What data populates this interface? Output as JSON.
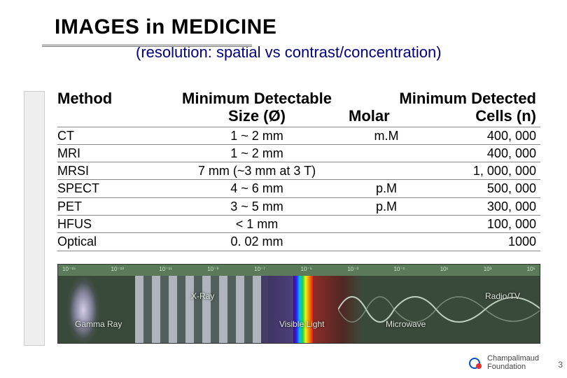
{
  "title": "IMAGES in MEDICINE",
  "subtitle": "(resolution: spatial vs contrast/concentration)",
  "headers": {
    "method": "Method",
    "size": "Minimum Detectable Size (Ø)",
    "detected": "Minimum Detected",
    "molar": "Molar",
    "cells": "Cells (n)"
  },
  "rows": [
    {
      "method": "CT",
      "size": "1 ~ 2 mm",
      "molar": "m.M",
      "cells": "400, 000"
    },
    {
      "method": "MRI",
      "size": "1 ~ 2 mm",
      "molar": "",
      "cells": "400, 000"
    },
    {
      "method": "MRSI",
      "size": "7 mm (~3 mm at 3 T)",
      "molar": "",
      "cells": "1, 000, 000"
    },
    {
      "method": "SPECT",
      "size": "4 ~ 6 mm",
      "molar": "p.M",
      "cells": "500, 000"
    },
    {
      "method": "PET",
      "size": "3 ~ 5 mm",
      "molar": "p.M",
      "cells": "300, 000"
    },
    {
      "method": "HFUS",
      "size": "< 1 mm",
      "molar": "",
      "cells": "100, 000"
    },
    {
      "method": "Optical",
      "size": "0. 02 mm",
      "molar": "",
      "cells": "1000"
    }
  ],
  "spectrum": {
    "ruler": [
      "10⁻¹⁵",
      "10⁻¹³",
      "10⁻¹¹",
      "10⁻⁹",
      "10⁻⁷",
      "10⁻⁵",
      "10⁻³",
      "10⁻¹",
      "10¹",
      "10³",
      "10⁵"
    ],
    "labels": {
      "gamma": "Gamma Ray",
      "xray": "X-Ray",
      "visible": "Visible Light",
      "microwave": "Microwave",
      "radio": "Radio/TV"
    }
  },
  "footer": {
    "org1": "Champalimaud",
    "org2": "Foundation"
  },
  "page": "3"
}
